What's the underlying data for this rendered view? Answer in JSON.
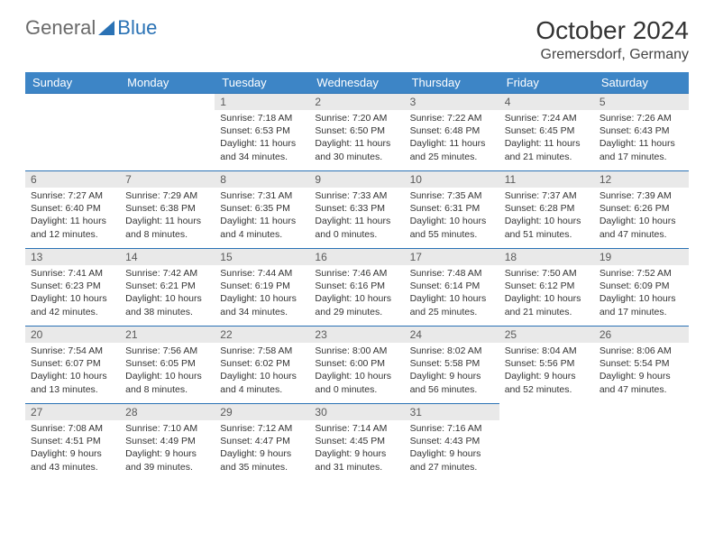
{
  "brand": {
    "part1": "General",
    "part2": "Blue"
  },
  "title": "October 2024",
  "location": "Gremersdorf, Germany",
  "colors": {
    "header_bg": "#3d85c6",
    "header_text": "#ffffff",
    "daynum_bg": "#e9e9e9",
    "border": "#2a72b5",
    "brand_grey": "#6a6a6a",
    "brand_blue": "#2a72b5"
  },
  "weekdays": [
    "Sunday",
    "Monday",
    "Tuesday",
    "Wednesday",
    "Thursday",
    "Friday",
    "Saturday"
  ],
  "weeks": [
    [
      null,
      null,
      {
        "n": "1",
        "sunrise": "7:18 AM",
        "sunset": "6:53 PM",
        "daylight": "11 hours and 34 minutes."
      },
      {
        "n": "2",
        "sunrise": "7:20 AM",
        "sunset": "6:50 PM",
        "daylight": "11 hours and 30 minutes."
      },
      {
        "n": "3",
        "sunrise": "7:22 AM",
        "sunset": "6:48 PM",
        "daylight": "11 hours and 25 minutes."
      },
      {
        "n": "4",
        "sunrise": "7:24 AM",
        "sunset": "6:45 PM",
        "daylight": "11 hours and 21 minutes."
      },
      {
        "n": "5",
        "sunrise": "7:26 AM",
        "sunset": "6:43 PM",
        "daylight": "11 hours and 17 minutes."
      }
    ],
    [
      {
        "n": "6",
        "sunrise": "7:27 AM",
        "sunset": "6:40 PM",
        "daylight": "11 hours and 12 minutes."
      },
      {
        "n": "7",
        "sunrise": "7:29 AM",
        "sunset": "6:38 PM",
        "daylight": "11 hours and 8 minutes."
      },
      {
        "n": "8",
        "sunrise": "7:31 AM",
        "sunset": "6:35 PM",
        "daylight": "11 hours and 4 minutes."
      },
      {
        "n": "9",
        "sunrise": "7:33 AM",
        "sunset": "6:33 PM",
        "daylight": "11 hours and 0 minutes."
      },
      {
        "n": "10",
        "sunrise": "7:35 AM",
        "sunset": "6:31 PM",
        "daylight": "10 hours and 55 minutes."
      },
      {
        "n": "11",
        "sunrise": "7:37 AM",
        "sunset": "6:28 PM",
        "daylight": "10 hours and 51 minutes."
      },
      {
        "n": "12",
        "sunrise": "7:39 AM",
        "sunset": "6:26 PM",
        "daylight": "10 hours and 47 minutes."
      }
    ],
    [
      {
        "n": "13",
        "sunrise": "7:41 AM",
        "sunset": "6:23 PM",
        "daylight": "10 hours and 42 minutes."
      },
      {
        "n": "14",
        "sunrise": "7:42 AM",
        "sunset": "6:21 PM",
        "daylight": "10 hours and 38 minutes."
      },
      {
        "n": "15",
        "sunrise": "7:44 AM",
        "sunset": "6:19 PM",
        "daylight": "10 hours and 34 minutes."
      },
      {
        "n": "16",
        "sunrise": "7:46 AM",
        "sunset": "6:16 PM",
        "daylight": "10 hours and 29 minutes."
      },
      {
        "n": "17",
        "sunrise": "7:48 AM",
        "sunset": "6:14 PM",
        "daylight": "10 hours and 25 minutes."
      },
      {
        "n": "18",
        "sunrise": "7:50 AM",
        "sunset": "6:12 PM",
        "daylight": "10 hours and 21 minutes."
      },
      {
        "n": "19",
        "sunrise": "7:52 AM",
        "sunset": "6:09 PM",
        "daylight": "10 hours and 17 minutes."
      }
    ],
    [
      {
        "n": "20",
        "sunrise": "7:54 AM",
        "sunset": "6:07 PM",
        "daylight": "10 hours and 13 minutes."
      },
      {
        "n": "21",
        "sunrise": "7:56 AM",
        "sunset": "6:05 PM",
        "daylight": "10 hours and 8 minutes."
      },
      {
        "n": "22",
        "sunrise": "7:58 AM",
        "sunset": "6:02 PM",
        "daylight": "10 hours and 4 minutes."
      },
      {
        "n": "23",
        "sunrise": "8:00 AM",
        "sunset": "6:00 PM",
        "daylight": "10 hours and 0 minutes."
      },
      {
        "n": "24",
        "sunrise": "8:02 AM",
        "sunset": "5:58 PM",
        "daylight": "9 hours and 56 minutes."
      },
      {
        "n": "25",
        "sunrise": "8:04 AM",
        "sunset": "5:56 PM",
        "daylight": "9 hours and 52 minutes."
      },
      {
        "n": "26",
        "sunrise": "8:06 AM",
        "sunset": "5:54 PM",
        "daylight": "9 hours and 47 minutes."
      }
    ],
    [
      {
        "n": "27",
        "sunrise": "7:08 AM",
        "sunset": "4:51 PM",
        "daylight": "9 hours and 43 minutes."
      },
      {
        "n": "28",
        "sunrise": "7:10 AM",
        "sunset": "4:49 PM",
        "daylight": "9 hours and 39 minutes."
      },
      {
        "n": "29",
        "sunrise": "7:12 AM",
        "sunset": "4:47 PM",
        "daylight": "9 hours and 35 minutes."
      },
      {
        "n": "30",
        "sunrise": "7:14 AM",
        "sunset": "4:45 PM",
        "daylight": "9 hours and 31 minutes."
      },
      {
        "n": "31",
        "sunrise": "7:16 AM",
        "sunset": "4:43 PM",
        "daylight": "9 hours and 27 minutes."
      },
      null,
      null
    ]
  ],
  "labels": {
    "sunrise": "Sunrise:",
    "sunset": "Sunset:",
    "daylight": "Daylight:"
  }
}
